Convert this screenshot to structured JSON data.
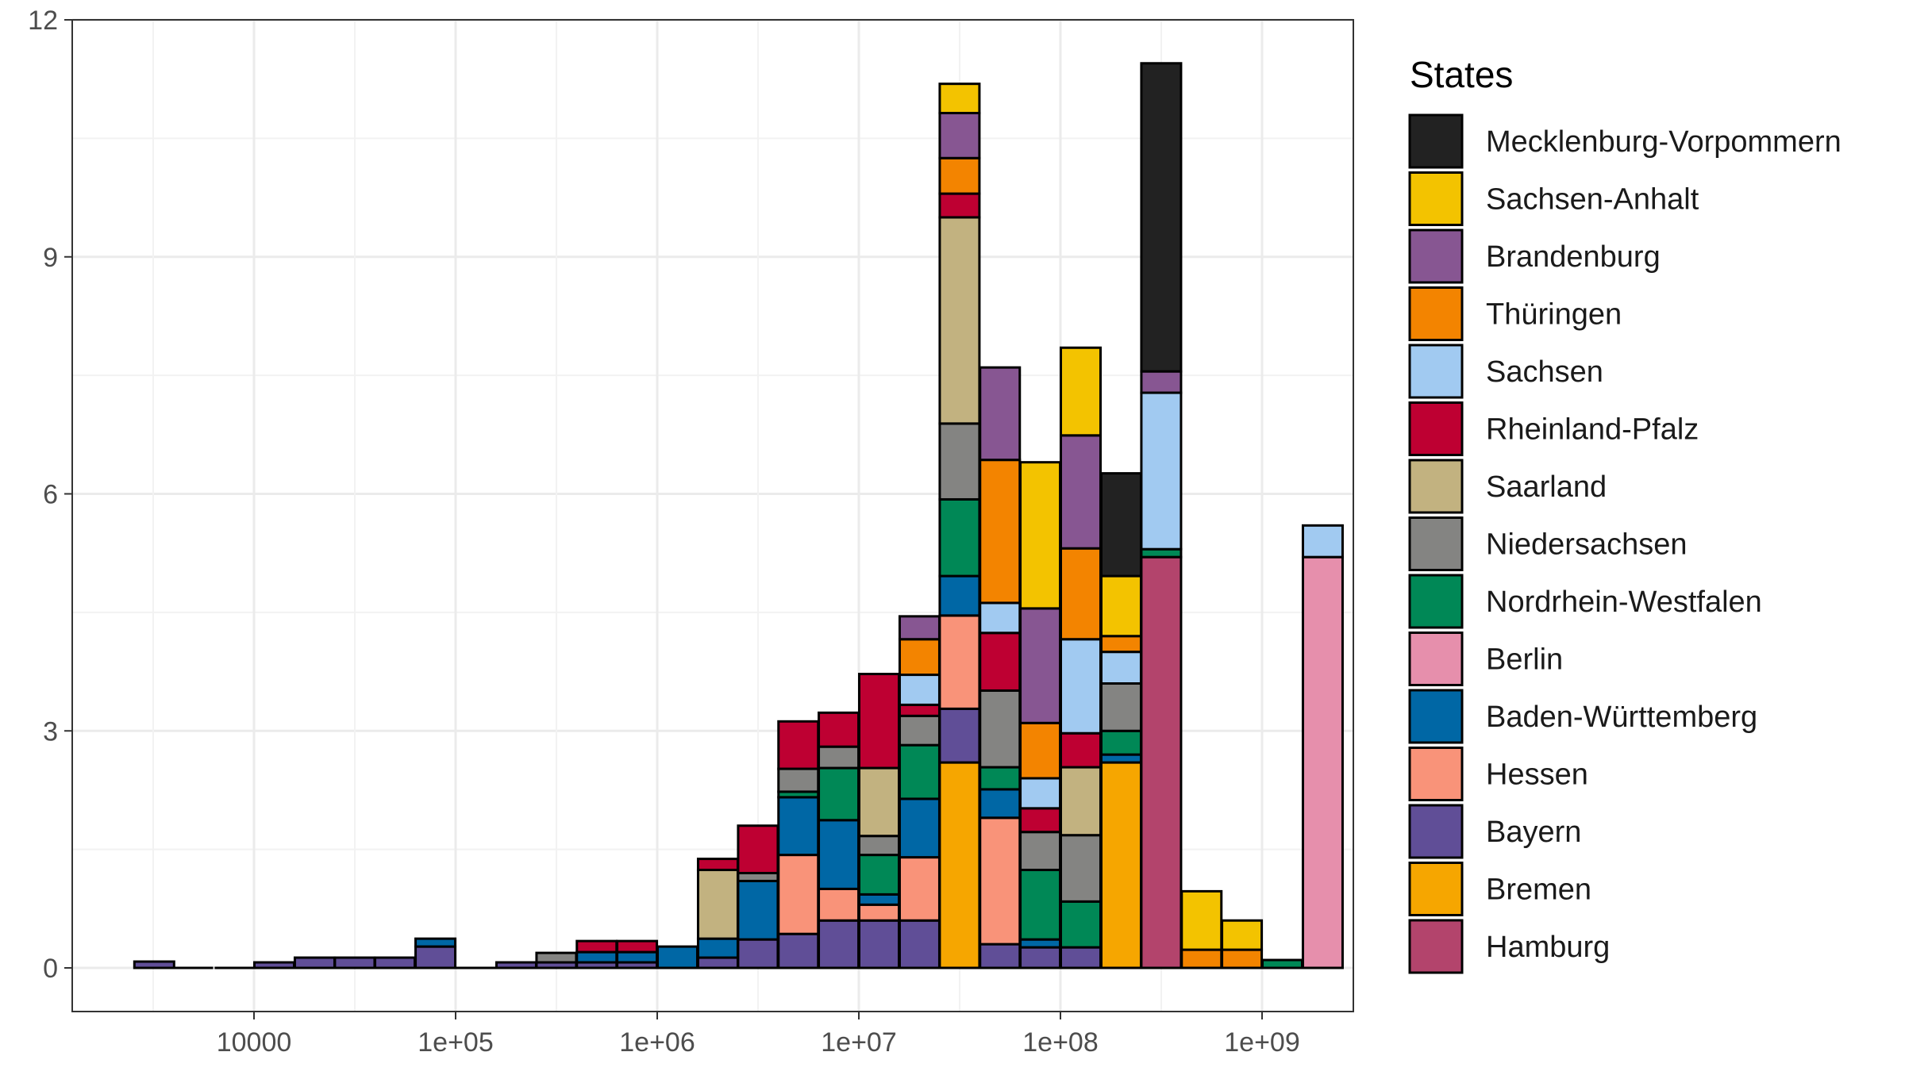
{
  "chart_data": {
    "type": "bar",
    "stacked": true,
    "x_scale": "log10",
    "y_range": [
      0,
      12
    ],
    "y_ticks": [
      0,
      3,
      6,
      9,
      12
    ],
    "x_tick_labels": [
      "10000",
      "1e+05",
      "1e+06",
      "1e+07",
      "1e+08",
      "1e+09"
    ],
    "grid": true,
    "legend_position": "right",
    "legend_title": "States",
    "series": [
      {
        "name": "Mecklenburg-Vorpommern",
        "color": "#222222"
      },
      {
        "name": "Sachsen-Anhalt",
        "color": "#f3c300"
      },
      {
        "name": "Brandenburg",
        "color": "#875692"
      },
      {
        "name": "Thüringen",
        "color": "#f38400"
      },
      {
        "name": "Sachsen",
        "color": "#a1caf1"
      },
      {
        "name": "Rheinland-Pfalz",
        "color": "#be0032"
      },
      {
        "name": "Saarland",
        "color": "#c2b280"
      },
      {
        "name": "Niedersachsen",
        "color": "#848482"
      },
      {
        "name": "Nordrhein-Westfalen",
        "color": "#008856"
      },
      {
        "name": "Berlin",
        "color": "#e68fac"
      },
      {
        "name": "Baden-Württemberg",
        "color": "#0067a5"
      },
      {
        "name": "Hessen",
        "color": "#f99379"
      },
      {
        "name": "Bayern",
        "color": "#604e97"
      },
      {
        "name": "Bremen",
        "color": "#f6a600"
      },
      {
        "name": "Hamburg",
        "color": "#b3446c"
      }
    ],
    "bins": [
      {
        "center": 3200,
        "stack": [
          [
            "Bayern",
            0.08
          ]
        ]
      },
      {
        "center": 5000,
        "stack": []
      },
      {
        "center": 8000,
        "stack": []
      },
      {
        "center": 12600,
        "stack": [
          [
            "Bayern",
            0.07
          ]
        ]
      },
      {
        "center": 20000,
        "stack": [
          [
            "Bayern",
            0.13
          ]
        ]
      },
      {
        "center": 31600,
        "stack": [
          [
            "Bayern",
            0.13
          ]
        ]
      },
      {
        "center": 50000,
        "stack": [
          [
            "Bayern",
            0.13
          ]
        ]
      },
      {
        "center": 79400,
        "stack": [
          [
            "Bayern",
            0.27
          ],
          [
            "Baden-Württemberg",
            0.1
          ]
        ]
      },
      {
        "center": 126000,
        "stack": []
      },
      {
        "center": 200000,
        "stack": [
          [
            "Bayern",
            0.07
          ]
        ]
      },
      {
        "center": 316000,
        "stack": [
          [
            "Bayern",
            0.07
          ],
          [
            "Niedersachsen",
            0.12
          ]
        ]
      },
      {
        "center": 501000,
        "stack": [
          [
            "Bayern",
            0.07
          ],
          [
            "Baden-Württemberg",
            0.13
          ],
          [
            "Rheinland-Pfalz",
            0.14
          ]
        ]
      },
      {
        "center": 794000,
        "stack": [
          [
            "Bayern",
            0.07
          ],
          [
            "Baden-Württemberg",
            0.13
          ],
          [
            "Rheinland-Pfalz",
            0.14
          ]
        ]
      },
      {
        "center": 1260000,
        "stack": [
          [
            "Baden-Württemberg",
            0.27
          ]
        ]
      },
      {
        "center": 2000000,
        "stack": [
          [
            "Bayern",
            0.13
          ],
          [
            "Baden-Württemberg",
            0.24
          ],
          [
            "Saarland",
            0.87
          ],
          [
            "Rheinland-Pfalz",
            0.14
          ]
        ]
      },
      {
        "center": 3160000,
        "stack": [
          [
            "Bayern",
            0.36
          ],
          [
            "Baden-Württemberg",
            0.74
          ],
          [
            "Niedersachsen",
            0.1
          ],
          [
            "Rheinland-Pfalz",
            0.6
          ]
        ]
      },
      {
        "center": 5010000,
        "stack": [
          [
            "Bayern",
            0.43
          ],
          [
            "Hessen",
            1.0
          ],
          [
            "Baden-Württemberg",
            0.73
          ],
          [
            "Nordrhein-Westfalen",
            0.07
          ],
          [
            "Niedersachsen",
            0.29
          ],
          [
            "Rheinland-Pfalz",
            0.6
          ]
        ]
      },
      {
        "center": 7940000,
        "stack": [
          [
            "Bayern",
            0.6
          ],
          [
            "Hessen",
            0.4
          ],
          [
            "Baden-Württemberg",
            0.87
          ],
          [
            "Nordrhein-Westfalen",
            0.66
          ],
          [
            "Niedersachsen",
            0.27
          ],
          [
            "Rheinland-Pfalz",
            0.43
          ]
        ]
      },
      {
        "center": 12600000,
        "stack": [
          [
            "Bayern",
            0.6
          ],
          [
            "Hessen",
            0.2
          ],
          [
            "Baden-Württemberg",
            0.13
          ],
          [
            "Nordrhein-Westfalen",
            0.5
          ],
          [
            "Niedersachsen",
            0.24
          ],
          [
            "Saarland",
            0.86
          ],
          [
            "Rheinland-Pfalz",
            1.19
          ]
        ]
      },
      {
        "center": 20000000,
        "stack": [
          [
            "Bayern",
            0.6
          ],
          [
            "Hessen",
            0.8
          ],
          [
            "Baden-Württemberg",
            0.74
          ],
          [
            "Nordrhein-Westfalen",
            0.68
          ],
          [
            "Niedersachsen",
            0.37
          ],
          [
            "Rheinland-Pfalz",
            0.14
          ],
          [
            "Sachsen",
            0.38
          ],
          [
            "Thüringen",
            0.45
          ],
          [
            "Brandenburg",
            0.29
          ]
        ]
      },
      {
        "center": 31600000,
        "stack": [
          [
            "Bremen",
            2.6
          ],
          [
            "Bayern",
            0.68
          ],
          [
            "Hessen",
            1.18
          ],
          [
            "Baden-Württemberg",
            0.5
          ],
          [
            "Nordrhein-Westfalen",
            0.97
          ],
          [
            "Niedersachsen",
            0.96
          ],
          [
            "Saarland",
            2.61
          ],
          [
            "Rheinland-Pfalz",
            0.3
          ],
          [
            "Thüringen",
            0.45
          ],
          [
            "Brandenburg",
            0.57
          ],
          [
            "Sachsen-Anhalt",
            0.37
          ]
        ]
      },
      {
        "center": 50100000,
        "stack": [
          [
            "Bayern",
            0.3
          ],
          [
            "Hessen",
            1.6
          ],
          [
            "Baden-Württemberg",
            0.36
          ],
          [
            "Nordrhein-Westfalen",
            0.28
          ],
          [
            "Niedersachsen",
            0.97
          ],
          [
            "Rheinland-Pfalz",
            0.73
          ],
          [
            "Sachsen",
            0.38
          ],
          [
            "Thüringen",
            1.81
          ],
          [
            "Brandenburg",
            1.17
          ]
        ]
      },
      {
        "center": 79400000,
        "stack": [
          [
            "Bayern",
            0.26
          ],
          [
            "Baden-Württemberg",
            0.1
          ],
          [
            "Nordrhein-Westfalen",
            0.88
          ],
          [
            "Niedersachsen",
            0.48
          ],
          [
            "Rheinland-Pfalz",
            0.3
          ],
          [
            "Sachsen",
            0.38
          ],
          [
            "Thüringen",
            0.7
          ],
          [
            "Brandenburg",
            1.45
          ],
          [
            "Sachsen-Anhalt",
            1.85
          ]
        ]
      },
      {
        "center": 126000000,
        "stack": [
          [
            "Bayern",
            0.26
          ],
          [
            "Nordrhein-Westfalen",
            0.58
          ],
          [
            "Niedersachsen",
            0.84
          ],
          [
            "Saarland",
            0.86
          ],
          [
            "Rheinland-Pfalz",
            0.43
          ],
          [
            "Sachsen",
            1.19
          ],
          [
            "Thüringen",
            1.15
          ],
          [
            "Brandenburg",
            1.43
          ],
          [
            "Sachsen-Anhalt",
            1.11
          ]
        ]
      },
      {
        "center": 200000000,
        "stack": [
          [
            "Bremen",
            2.6
          ],
          [
            "Baden-Württemberg",
            0.1
          ],
          [
            "Nordrhein-Westfalen",
            0.3
          ],
          [
            "Niedersachsen",
            0.6
          ],
          [
            "Sachsen",
            0.4
          ],
          [
            "Thüringen",
            0.2
          ],
          [
            "Sachsen-Anhalt",
            0.76
          ],
          [
            "Mecklenburg-Vorpommern",
            1.3
          ]
        ]
      },
      {
        "center": 316000000,
        "stack": [
          [
            "Hamburg",
            5.2
          ],
          [
            "Nordrhein-Westfalen",
            0.1
          ],
          [
            "Sachsen",
            1.98
          ],
          [
            "Brandenburg",
            0.27
          ],
          [
            "Mecklenburg-Vorpommern",
            3.9
          ]
        ]
      },
      {
        "center": 501000000,
        "stack": [
          [
            "Thüringen",
            0.23
          ],
          [
            "Sachsen-Anhalt",
            0.74
          ]
        ]
      },
      {
        "center": 794000000,
        "stack": [
          [
            "Thüringen",
            0.23
          ],
          [
            "Sachsen-Anhalt",
            0.37
          ]
        ]
      },
      {
        "center": 1260000000,
        "stack": [
          [
            "Nordrhein-Westfalen",
            0.1
          ]
        ]
      },
      {
        "center": 2000000000,
        "stack": [
          [
            "Berlin",
            5.2
          ],
          [
            "Sachsen",
            0.4
          ]
        ]
      }
    ]
  }
}
